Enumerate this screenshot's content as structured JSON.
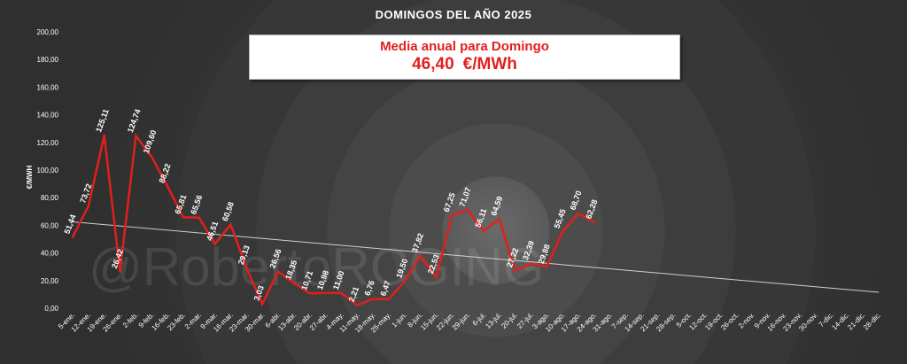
{
  "chart_data": {
    "type": "line",
    "title": "DOMINGOS DEL AÑO 2025",
    "ylabel": "€/MWH",
    "ylim": [
      0,
      200
    ],
    "yticks": [
      "0,00",
      "20,00",
      "40,00",
      "60,00",
      "80,00",
      "100,00",
      "120,00",
      "140,00",
      "160,00",
      "180,00",
      "200,00"
    ],
    "categories": [
      "5-ene.",
      "12-ene.",
      "19-ene.",
      "26-ene.",
      "2-feb.",
      "9-feb.",
      "16-feb.",
      "23-feb.",
      "2-mar.",
      "9-mar.",
      "16-mar.",
      "23-mar.",
      "30-mar.",
      "6-abr.",
      "13-abr.",
      "20-abr.",
      "27-abr.",
      "4-may.",
      "11-may.",
      "18-may.",
      "25-may.",
      "1-jun.",
      "8-jun.",
      "15-jun.",
      "22-jun.",
      "29-jun.",
      "6-jul.",
      "13-jul.",
      "20-jul.",
      "27-jul.",
      "3-ago.",
      "10-ago.",
      "17-ago.",
      "24-ago.",
      "31-ago.",
      "7-sep.",
      "14-sep.",
      "21-sep.",
      "28-sep.",
      "5-oct.",
      "12-oct.",
      "19-oct.",
      "26-oct.",
      "2-nov.",
      "9-nov.",
      "16-nov.",
      "23-nov.",
      "30-nov.",
      "7-dic.",
      "14-dic.",
      "21-dic.",
      "28-dic."
    ],
    "series": [
      {
        "values": [
          51.44,
          73.72,
          125.11,
          26.42,
          124.74,
          109.6,
          88.22,
          65.81,
          65.56,
          46.51,
          60.58,
          29.13,
          3.03,
          26.56,
          18.35,
          10.71,
          10.98,
          11.0,
          2.21,
          6.76,
          6.47,
          19.5,
          37.82,
          22.53,
          67.25,
          71.07,
          56.11,
          64.59,
          27.22,
          32.39,
          29.88,
          55.45,
          68.7,
          62.28
        ]
      }
    ],
    "labels": [
      "51,44",
      "73,72",
      "125,11",
      "26,42",
      "124,74",
      "109,60",
      "88,22",
      "65,81",
      "65,56",
      "46,51",
      "60,58",
      "29,13",
      "3,03",
      "26,56",
      "18,35",
      "10,71",
      "10,98",
      "11,00",
      "2,21",
      "6,76",
      "6,47",
      "19,50",
      "37,82",
      "22,53",
      "67,25",
      "71,07",
      "56,11",
      "64,59",
      "27,22",
      "32,39",
      "29,88",
      "55,45",
      "68,70",
      "62,28"
    ],
    "trendline": {
      "start": 62.5,
      "end": 11.5
    },
    "grid": false,
    "colors": {
      "line": "#e0201c",
      "trend": "#d0d0d0"
    }
  },
  "summary": {
    "label": "Media anual para Domingo",
    "value": "46,40",
    "unit": "€/MWh"
  },
  "watermark": "@RobertoRCGING"
}
